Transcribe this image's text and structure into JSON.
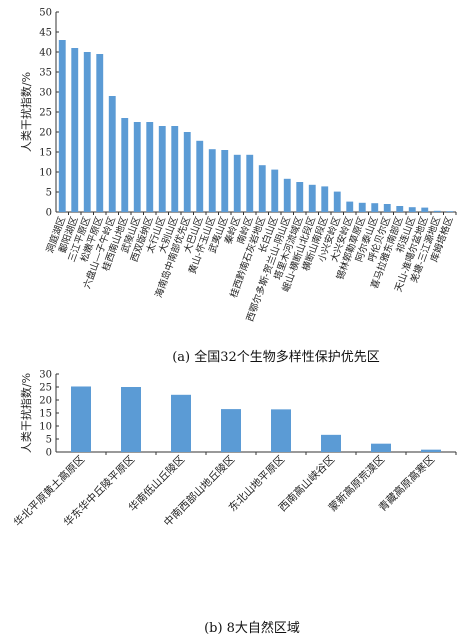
{
  "chart_data": [
    {
      "type": "bar",
      "caption": "(a) 全国32个生物多样性保护优先区",
      "ylabel": "人类干扰指数/%",
      "ylim": [
        0,
        50
      ],
      "yticks": [
        0,
        5,
        10,
        15,
        20,
        25,
        30,
        35,
        40,
        45,
        50
      ],
      "color": "#5b9bd5",
      "categories": [
        "洞庭湖区",
        "鄱阳湖区",
        "三江平原区",
        "松嫩平原区",
        "六盘山—子午岭区",
        "桂西南山地区",
        "武陵山区",
        "西双版纳区",
        "太行山区",
        "大别山区",
        "海南岛中南部优先区",
        "大巴山区",
        "黄山-怀玉山区",
        "武夷山区",
        "秦岭区",
        "南岭区",
        "桂西黔南石灰岩地区",
        "长白山区",
        "西鄂尔多斯-贺兰山-阴山区",
        "塔里木河流域区",
        "岷山-横断山北段区",
        "横断山南段区",
        "小兴安岭区",
        "大兴安岭区",
        "锡林郭勒草原区",
        "阿尔泰山区",
        "呼伦贝尔区",
        "喜马拉雅东南部区",
        "祁连山区",
        "天山-准噶尔盆地区",
        "羌塘-三江源地区",
        "库姆塔格区"
      ],
      "values": [
        43.0,
        41.0,
        40.0,
        39.5,
        29.0,
        23.5,
        22.5,
        22.5,
        21.5,
        21.5,
        20.0,
        17.8,
        15.7,
        15.5,
        14.3,
        14.3,
        11.7,
        10.6,
        8.3,
        7.5,
        6.8,
        6.4,
        5.1,
        2.6,
        2.3,
        2.2,
        2.0,
        1.5,
        1.2,
        1.1,
        0.3,
        0.2
      ]
    },
    {
      "type": "bar",
      "caption": "(b) 8大自然区域",
      "ylabel": "人类干扰指数/%",
      "ylim": [
        0,
        30
      ],
      "yticks": [
        0,
        5,
        10,
        15,
        20,
        25,
        30
      ],
      "color": "#5b9bd5",
      "categories": [
        "华北平原黄土高原区",
        "华东华中丘陵平原区",
        "华南低山丘陵区",
        "中南西部山地丘陵区",
        "东北山地平原区",
        "西南高山峡谷区",
        "蒙新高原荒漠区",
        "青藏高原高寒区"
      ],
      "values": [
        25.2,
        25.0,
        22.0,
        16.5,
        16.4,
        6.6,
        3.2,
        0.9
      ]
    }
  ]
}
